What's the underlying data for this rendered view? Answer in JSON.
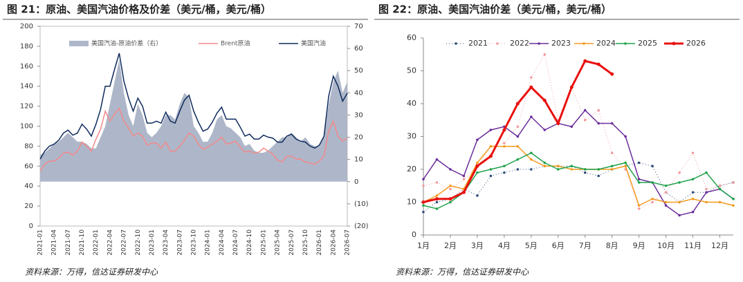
{
  "chart_data": [
    {
      "type": "line",
      "title": "图 21：原油、美国汽油价格及价差（美元/桶，美元/桶）",
      "source": "资料来源：万得，信达证券研发中心",
      "categories": [
        "2021-01",
        null,
        null,
        "2021-04",
        null,
        null,
        "2021-07",
        null,
        null,
        "2021-10",
        null,
        null,
        "2022-01",
        null,
        null,
        "2022-04",
        null,
        null,
        "2022-07",
        null,
        null,
        "2022-10",
        null,
        null,
        "2023-01",
        null,
        null,
        "2023-04",
        null,
        null,
        "2023-07",
        null,
        null,
        "2023-10",
        null,
        null,
        "2024-01",
        null,
        null,
        "2024-04",
        null,
        null,
        "2024-07",
        null,
        null,
        "2024-10",
        null,
        null,
        "2025-01",
        null,
        null,
        "2025-04",
        null,
        null,
        "2025-07",
        null,
        null,
        "2025-10",
        null,
        null,
        "2026-01",
        null,
        null,
        "2026-04",
        null,
        null,
        "2026-07"
      ],
      "ylim": [
        0,
        200
      ],
      "yticks": [
        0,
        20,
        40,
        60,
        80,
        100,
        120,
        140,
        160,
        180,
        200
      ],
      "y2lim": [
        -20,
        70
      ],
      "y2ticks": [
        {
          "value": -20,
          "label": "(20)"
        },
        {
          "value": -10,
          "label": "(10)"
        },
        0,
        10,
        20,
        30,
        40,
        50,
        60,
        70
      ],
      "y2_negative_color": "#e60000",
      "series": [
        {
          "name": "美国汽油-原油价差（右）",
          "kind": "area",
          "axis": "y2",
          "color": "#aeb7c9",
          "values": [
            12,
            13,
            15,
            17,
            18,
            20,
            22,
            20,
            18,
            18,
            17,
            15,
            15,
            20,
            25,
            35,
            45,
            55,
            40,
            30,
            25,
            35,
            30,
            22,
            20,
            22,
            25,
            30,
            30,
            28,
            35,
            40,
            38,
            25,
            22,
            18,
            18,
            22,
            28,
            30,
            25,
            24,
            22,
            20,
            16,
            17,
            14,
            13,
            13,
            14,
            16,
            18,
            20,
            20,
            22,
            20,
            18,
            20,
            17,
            16,
            16,
            20,
            35,
            45,
            50,
            40,
            45
          ]
        },
        {
          "name": "Brent原油",
          "kind": "line",
          "color": "#f4898a",
          "values": [
            55,
            62,
            65,
            65,
            68,
            73,
            74,
            71,
            75,
            84,
            80,
            75,
            87,
            97,
            115,
            105,
            112,
            118,
            105,
            98,
            90,
            93,
            90,
            81,
            83,
            83,
            78,
            84,
            75,
            75,
            80,
            86,
            93,
            90,
            82,
            77,
            79,
            82,
            85,
            89,
            82,
            83,
            85,
            79,
            74,
            75,
            73,
            74,
            78,
            75,
            72,
            66,
            64,
            70,
            70,
            67,
            67,
            64,
            63,
            62,
            65,
            70,
            95,
            105,
            90,
            85,
            88
          ]
        },
        {
          "name": "美国汽油",
          "kind": "line",
          "color": "#0e2a5c",
          "values": [
            67,
            75,
            80,
            82,
            86,
            93,
            96,
            91,
            93,
            102,
            97,
            90,
            102,
            117,
            140,
            140,
            157,
            173,
            145,
            128,
            115,
            128,
            120,
            103,
            103,
            105,
            103,
            114,
            105,
            103,
            115,
            126,
            131,
            115,
            104,
            95,
            97,
            104,
            113,
            119,
            107,
            107,
            107,
            99,
            90,
            92,
            87,
            87,
            91,
            89,
            88,
            84,
            84,
            90,
            92,
            87,
            85,
            84,
            80,
            78,
            81,
            90,
            130,
            150,
            140,
            125,
            133
          ]
        }
      ]
    },
    {
      "type": "line",
      "title": "图 22：原油、美国汽油价差（美元/桶，美元/桶）",
      "source": "资料来源：万得，信达证券研发中心",
      "x": [
        1,
        1.5,
        2,
        2.5,
        3,
        3.5,
        4,
        4.5,
        5,
        5.5,
        6,
        6.5,
        7,
        7.5,
        8,
        8.5,
        9,
        9.5,
        10,
        10.5,
        11,
        11.5,
        12,
        12.5
      ],
      "xlim": [
        1,
        12.5
      ],
      "xticks": [
        {
          "value": 1,
          "label": "1月"
        },
        {
          "value": 2,
          "label": "2月"
        },
        {
          "value": 3,
          "label": "3月"
        },
        {
          "value": 4,
          "label": "4月"
        },
        {
          "value": 5,
          "label": "5月"
        },
        {
          "value": 6,
          "label": "6月"
        },
        {
          "value": 7,
          "label": "7月"
        },
        {
          "value": 8,
          "label": "8月"
        },
        {
          "value": 9,
          "label": "9月"
        },
        {
          "value": 10,
          "label": "10月"
        },
        {
          "value": 11,
          "label": "11月"
        },
        {
          "value": 12,
          "label": "12月"
        }
      ],
      "ylim": [
        0,
        60
      ],
      "yticks": [
        0,
        10,
        20,
        30,
        40,
        50,
        60
      ],
      "series": [
        {
          "name": "2021",
          "color": "#2e4a7a",
          "dash": "1 3",
          "width": 1,
          "values": [
            7,
            10,
            11,
            14,
            12,
            18,
            19,
            20,
            20,
            21,
            21,
            21,
            19,
            18,
            20,
            21,
            22,
            21,
            13,
            10,
            13,
            13,
            15,
            16
          ]
        },
        {
          "name": "2022",
          "color": "#f49a9c",
          "dash": "1 3",
          "width": 1,
          "values": [
            15,
            16,
            14,
            17,
            21,
            27,
            28,
            33,
            48,
            55,
            35,
            45,
            35,
            38,
            25,
            20,
            8,
            10,
            13,
            19,
            25,
            14,
            15,
            16
          ]
        },
        {
          "name": "2023",
          "color": "#6a2d9b",
          "width": 1.5,
          "values": [
            17,
            23,
            20,
            18,
            29,
            32,
            33,
            30,
            36,
            32,
            34,
            33,
            38,
            34,
            34,
            30,
            17,
            16,
            9,
            6,
            7,
            13,
            14,
            11
          ]
        },
        {
          "name": "2024",
          "color": "#f39a1e",
          "width": 1.5,
          "values": [
            10,
            12,
            15,
            14,
            22,
            27,
            27,
            27,
            23,
            21,
            21,
            20,
            20,
            20,
            20,
            21,
            9,
            11,
            10,
            10,
            11,
            10,
            10,
            9
          ]
        },
        {
          "name": "2025",
          "color": "#1fa24a",
          "width": 1.5,
          "values": [
            9,
            8,
            10,
            13,
            19,
            20,
            21,
            23,
            25,
            22,
            20,
            21,
            20,
            20,
            21,
            22,
            16,
            16,
            15,
            16,
            17,
            19,
            14,
            11
          ]
        },
        {
          "name": "2026",
          "color": "#e8100e",
          "width": 3,
          "values": [
            10,
            11,
            11,
            13,
            21,
            24,
            32,
            40,
            45,
            41,
            34,
            45,
            53,
            52,
            49,
            null,
            null,
            null,
            null,
            null,
            null,
            null,
            null,
            null
          ]
        }
      ]
    }
  ]
}
